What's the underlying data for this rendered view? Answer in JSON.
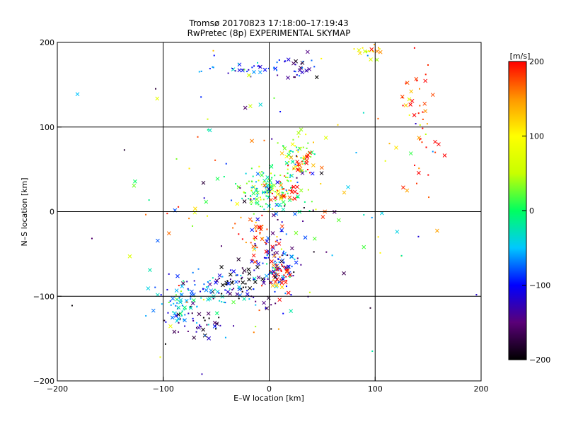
{
  "chart_data": {
    "type": "scatter",
    "title": "Tromsø 20170823 17:18:00–17:19:43",
    "subtitle": "RwPretec (8p) EXPERIMENTAL SKYMAP",
    "xlabel": "E–W location [km]",
    "ylabel": "N–S location [km]",
    "xlim": [
      -200,
      200
    ],
    "ylim": [
      -200,
      200
    ],
    "xticks": [
      -200,
      -100,
      0,
      100,
      200
    ],
    "yticks": [
      -200,
      -100,
      0,
      100,
      200
    ],
    "grid": true,
    "colorbar": {
      "label": "[m/s]",
      "range": [
        -200,
        200
      ],
      "ticks": [
        200,
        100,
        0,
        -100,
        -200
      ],
      "stops": [
        "#000000",
        "#5a0078",
        "#0000ff",
        "#00c8ff",
        "#00ff60",
        "#c8ff00",
        "#ffff00",
        "#ff9600",
        "#ff0000"
      ]
    },
    "clusters": [
      {
        "cx": 0,
        "cy": 25,
        "sx": 14,
        "sy": 12,
        "n": 140,
        "v": 0
      },
      {
        "cx": 25,
        "cy": 65,
        "sx": 10,
        "sy": 12,
        "n": 60,
        "v": 20
      },
      {
        "cx": 30,
        "cy": 55,
        "sx": 6,
        "sy": 8,
        "n": 25,
        "v": 190
      },
      {
        "cx": 15,
        "cy": 20,
        "sx": 8,
        "sy": 6,
        "n": 25,
        "v": 190
      },
      {
        "cx": 5,
        "cy": -60,
        "sx": 12,
        "sy": 20,
        "n": 110,
        "v": -100
      },
      {
        "cx": 10,
        "cy": -75,
        "sx": 8,
        "sy": 10,
        "n": 40,
        "v": 190
      },
      {
        "cx": -25,
        "cy": -80,
        "sx": 15,
        "sy": 10,
        "n": 40,
        "v": -200
      },
      {
        "cx": -10,
        "cy": -30,
        "sx": 10,
        "sy": 12,
        "n": 40,
        "v": 180
      },
      {
        "cx": -55,
        "cy": -95,
        "sx": 25,
        "sy": 12,
        "n": 80,
        "v": -70
      },
      {
        "cx": -85,
        "cy": -115,
        "sx": 12,
        "sy": 10,
        "n": 45,
        "v": -50
      },
      {
        "cx": -65,
        "cy": -135,
        "sx": 15,
        "sy": 10,
        "n": 40,
        "v": -150
      },
      {
        "cx": -20,
        "cy": 170,
        "sx": 15,
        "sy": 4,
        "n": 30,
        "v": -100
      },
      {
        "cx": 25,
        "cy": 170,
        "sx": 10,
        "sy": 8,
        "n": 30,
        "v": -130
      },
      {
        "cx": 95,
        "cy": 192,
        "sx": 6,
        "sy": 5,
        "n": 20,
        "v": 100
      },
      {
        "cx": 140,
        "cy": 130,
        "sx": 10,
        "sy": 40,
        "n": 30,
        "v": 190
      },
      {
        "cx": 145,
        "cy": 60,
        "sx": 8,
        "sy": 20,
        "n": 15,
        "v": 195
      },
      {
        "cx": 0,
        "cy": -5,
        "sx": 70,
        "sy": 90,
        "n": 160,
        "v": 0,
        "spread": true
      }
    ]
  }
}
